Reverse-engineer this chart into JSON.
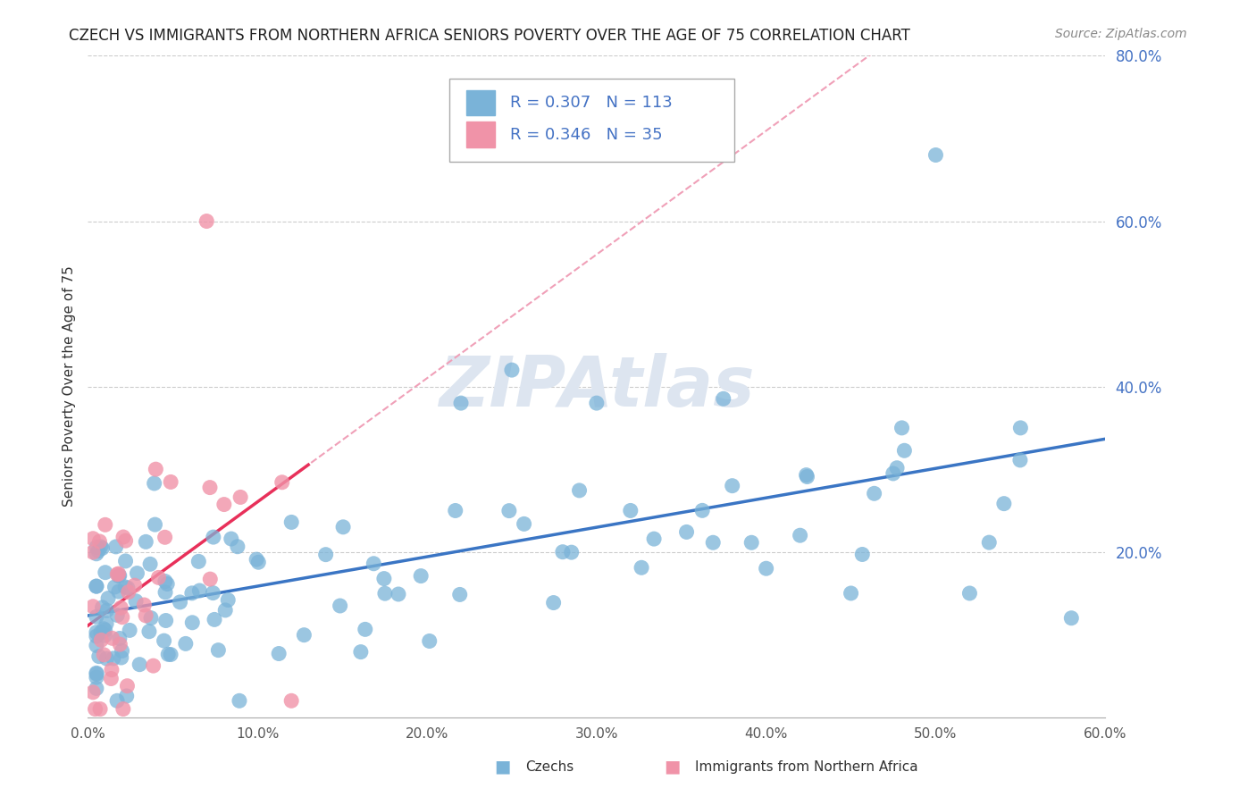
{
  "title": "CZECH VS IMMIGRANTS FROM NORTHERN AFRICA SENIORS POVERTY OVER THE AGE OF 75 CORRELATION CHART",
  "source": "Source: ZipAtlas.com",
  "ylabel": "Seniors Poverty Over the Age of 75",
  "legend_czech": {
    "R": 0.307,
    "N": 113
  },
  "legend_immig": {
    "R": 0.346,
    "N": 35
  },
  "legend_label_czech": "Czechs",
  "legend_label_immig": "Immigrants from Northern Africa",
  "czech_color": "#7ab3d8",
  "immig_color": "#f093a8",
  "trend_czech_color": "#3a75c4",
  "trend_immig_color": "#e8305a",
  "trend_dashed_color": "#f0a0b8",
  "watermark": "ZIPAtlas",
  "watermark_color": "#dde5f0",
  "xlim": [
    0.0,
    0.6
  ],
  "ylim": [
    0.0,
    0.8
  ],
  "background_color": "#ffffff",
  "plot_bg_color": "#ffffff"
}
